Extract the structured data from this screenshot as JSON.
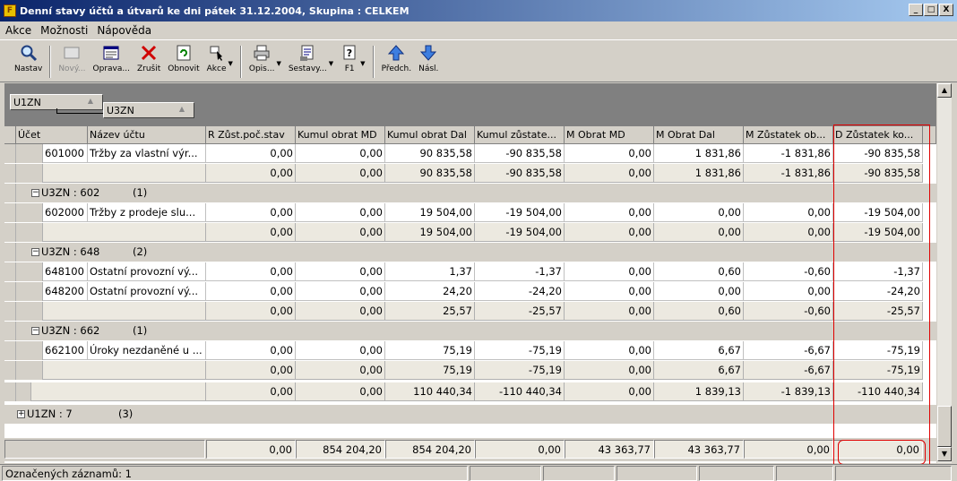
{
  "window": {
    "title": "Denní stavy účtů a útvarů ke dni  pátek 31.12.2004, Skupina : CELKEM",
    "app_icon_label": "F",
    "btn_min": "_",
    "btn_max": "□",
    "btn_close": "X"
  },
  "menu": [
    {
      "label": "Akce"
    },
    {
      "label": "Možnosti"
    },
    {
      "label": "Nápověda"
    }
  ],
  "toolbar": {
    "nastav": "Nastav",
    "novy": "Nový...",
    "oprava": "Oprava...",
    "zrusit": "Zrušit",
    "obnovit": "Obnovit",
    "akce": "Akce",
    "opis": "Opis...",
    "sestavy": "Sestavy...",
    "f1": "F1",
    "predch": "Předch.",
    "nasl": "Násl."
  },
  "groups": {
    "level1": "U1ZN",
    "level2": "U3ZN"
  },
  "columns": {
    "ucet": "Účet",
    "nazev": "Název účtu",
    "r_zust": "R Zůst.poč.stav",
    "kumul_md": "Kumul obrat MD",
    "kumul_dal": "Kumul obrat Dal",
    "kumul_zust": "Kumul zůstate...",
    "m_md": "M Obrat MD",
    "m_dal": "M Obrat Dal",
    "m_zust_ob": "M Zůstatek ob...",
    "d_zust_ko": "D Zůstatek ko..."
  },
  "rows": {
    "r601000": {
      "ucet": "601000",
      "nazev": "Tržby za vlastní výr...",
      "r": "0,00",
      "kmd": "0,00",
      "kdal": "90 835,58",
      "kz": "-90 835,58",
      "mmd": "0,00",
      "mdal": "1 831,86",
      "mz": "-1 831,86",
      "dz": "-90 835,58"
    },
    "s601": {
      "r": "0,00",
      "kmd": "0,00",
      "kdal": "90 835,58",
      "kz": "-90 835,58",
      "mmd": "0,00",
      "mdal": "1 831,86",
      "mz": "-1 831,86",
      "dz": "-90 835,58"
    },
    "g602": {
      "label": "U3ZN : 602",
      "count": "(1)"
    },
    "r602000": {
      "ucet": "602000",
      "nazev": "Tržby z prodeje slu...",
      "r": "0,00",
      "kmd": "0,00",
      "kdal": "19 504,00",
      "kz": "-19 504,00",
      "mmd": "0,00",
      "mdal": "0,00",
      "mz": "0,00",
      "dz": "-19 504,00"
    },
    "s602": {
      "r": "0,00",
      "kmd": "0,00",
      "kdal": "19 504,00",
      "kz": "-19 504,00",
      "mmd": "0,00",
      "mdal": "0,00",
      "mz": "0,00",
      "dz": "-19 504,00"
    },
    "g648": {
      "label": "U3ZN : 648",
      "count": "(2)"
    },
    "r648100": {
      "ucet": "648100",
      "nazev": "Ostatní provozní vý...",
      "r": "0,00",
      "kmd": "0,00",
      "kdal": "1,37",
      "kz": "-1,37",
      "mmd": "0,00",
      "mdal": "0,60",
      "mz": "-0,60",
      "dz": "-1,37"
    },
    "r648200": {
      "ucet": "648200",
      "nazev": "Ostatní provozní vý...",
      "r": "0,00",
      "kmd": "0,00",
      "kdal": "24,20",
      "kz": "-24,20",
      "mmd": "0,00",
      "mdal": "0,00",
      "mz": "0,00",
      "dz": "-24,20"
    },
    "s648": {
      "r": "0,00",
      "kmd": "0,00",
      "kdal": "25,57",
      "kz": "-25,57",
      "mmd": "0,00",
      "mdal": "0,60",
      "mz": "-0,60",
      "dz": "-25,57"
    },
    "g662": {
      "label": "U3ZN : 662",
      "count": "(1)"
    },
    "r662100": {
      "ucet": "662100",
      "nazev": "Úroky nezdaněné u ...",
      "r": "0,00",
      "kmd": "0,00",
      "kdal": "75,19",
      "kz": "-75,19",
      "mmd": "0,00",
      "mdal": "6,67",
      "mz": "-6,67",
      "dz": "-75,19"
    },
    "s662": {
      "r": "0,00",
      "kmd": "0,00",
      "kdal": "75,19",
      "kz": "-75,19",
      "mmd": "0,00",
      "mdal": "6,67",
      "mz": "-6,67",
      "dz": "-75,19"
    },
    "s_u1": {
      "r": "0,00",
      "kmd": "0,00",
      "kdal": "110 440,34",
      "kz": "-110 440,34",
      "mmd": "0,00",
      "mdal": "1 839,13",
      "mz": "-1 839,13",
      "dz": "-110 440,34"
    },
    "g_u1_7": {
      "label": "U1ZN : 7",
      "count": "(3)"
    }
  },
  "totals": {
    "r": "0,00",
    "kmd": "854 204,20",
    "kdal": "854 204,20",
    "kz": "0,00",
    "mmd": "43 363,77",
    "mdal": "43 363,77",
    "mz": "0,00",
    "dz": "0,00"
  },
  "status": {
    "marked": "Označených záznamů: 1"
  },
  "colors": {
    "highlight": "#e00000",
    "title_start": "#0a246a",
    "title_end": "#a6caf0"
  }
}
